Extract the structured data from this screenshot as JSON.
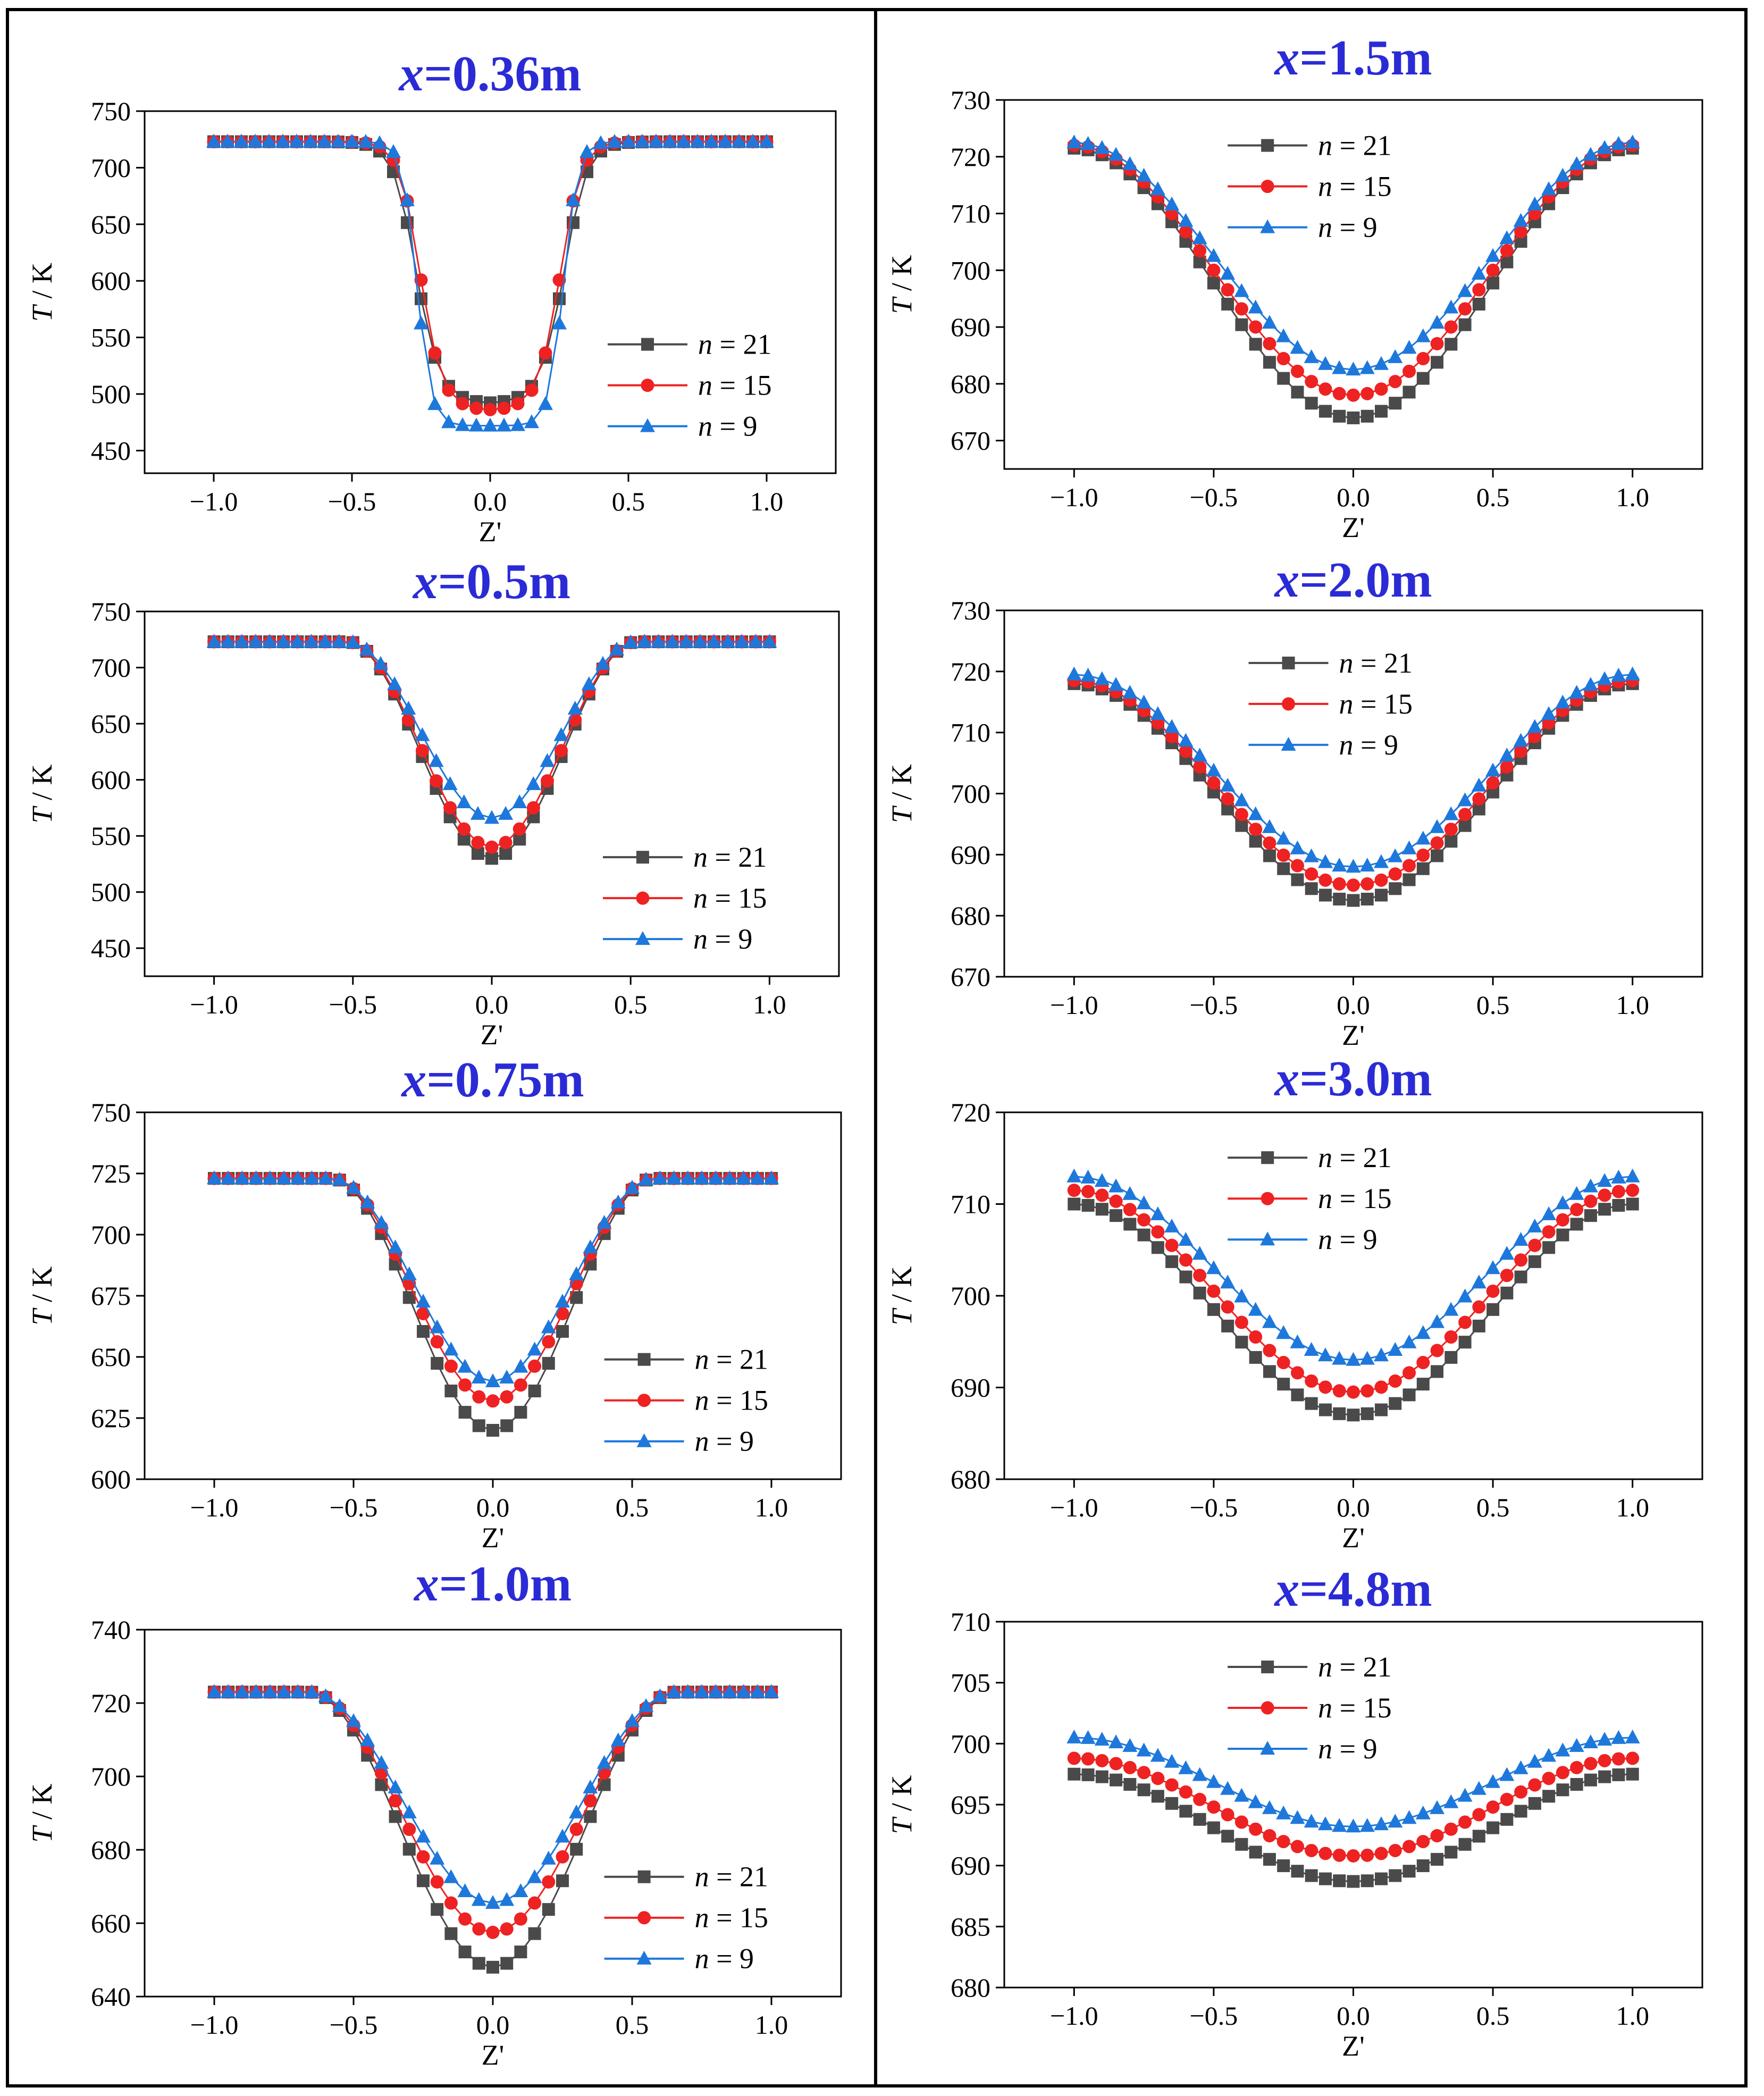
{
  "figure": {
    "xlabel": "Z'",
    "ylabel_italic": "T",
    "ylabel_unit": " / K"
  },
  "chart_data": [
    {
      "type": "line",
      "title_var": "x",
      "title_value": "=0.36m",
      "xlabel": "Z'",
      "ylabel": "T / K",
      "xlim": [
        -1.25,
        1.25
      ],
      "ylim": [
        430,
        750
      ],
      "xticks": [
        "-1.0",
        "-0.5",
        "0.0",
        "0.5",
        "1.0"
      ],
      "yticks": [
        "450",
        "500",
        "550",
        "600",
        "650",
        "700",
        "750"
      ],
      "ytick_values": [
        450,
        500,
        550,
        600,
        650,
        700,
        750
      ],
      "legend_placement": "center-right",
      "profile": {
        "kind": "well",
        "outer": 723
      },
      "series": [
        {
          "name": "n = 21",
          "n_value": "21",
          "marker": "square",
          "color": "#4a4a4a",
          "center": 492,
          "edge": 0.27,
          "edge_width": 0.04,
          "flat": 0.035
        },
        {
          "name": "n = 15",
          "n_value": "15",
          "marker": "circle",
          "color": "#ee2222",
          "center": 486,
          "edge": 0.255,
          "edge_width": 0.037,
          "flat": 0.01
        },
        {
          "name": "n = 9",
          "n_value": "9",
          "marker": "triangle",
          "color": "#1e78dc",
          "center": 472,
          "edge": 0.265,
          "edge_width": 0.026,
          "flat": 0.045
        }
      ]
    },
    {
      "type": "line",
      "title_var": "x",
      "title_value": "=1.5m",
      "xlabel": "Z'",
      "ylabel": "T / K",
      "xlim": [
        -1.25,
        1.25
      ],
      "ylim": [
        665,
        730
      ],
      "xticks": [
        "-1.0",
        "-0.5",
        "0.0",
        "0.5",
        "1.0"
      ],
      "yticks": [
        "670",
        "680",
        "690",
        "700",
        "710",
        "720",
        "730"
      ],
      "ytick_values": [
        670,
        680,
        690,
        700,
        710,
        720,
        730
      ],
      "legend_placement": "top-left",
      "profile": {
        "kind": "cosine"
      },
      "series": [
        {
          "name": "n = 21",
          "n_value": "21",
          "marker": "square",
          "color": "#4a4a4a",
          "center": 674,
          "end": 721.5
        },
        {
          "name": "n = 15",
          "n_value": "15",
          "marker": "circle",
          "color": "#ee2222",
          "center": 678,
          "end": 722
        },
        {
          "name": "n = 9",
          "n_value": "9",
          "marker": "triangle",
          "color": "#1e78dc",
          "center": 682.5,
          "end": 722.5
        }
      ]
    },
    {
      "type": "line",
      "title_var": "x",
      "title_value": "=0.5m",
      "xlabel": "Z'",
      "ylabel": "T / K",
      "xlim": [
        -1.25,
        1.25
      ],
      "ylim": [
        425,
        750
      ],
      "xticks": [
        "-1.0",
        "-0.5",
        "0.0",
        "0.5",
        "1.0"
      ],
      "yticks": [
        "450",
        "500",
        "550",
        "600",
        "650",
        "700",
        "750"
      ],
      "ytick_values": [
        450,
        500,
        550,
        600,
        650,
        700,
        750
      ],
      "legend_placement": "bottom-right",
      "profile": {
        "kind": "bump",
        "outer": 723,
        "width": 0.52
      },
      "series": [
        {
          "name": "n = 21",
          "n_value": "21",
          "marker": "square",
          "color": "#4a4a4a",
          "center": 530
        },
        {
          "name": "n = 15",
          "n_value": "15",
          "marker": "circle",
          "color": "#ee2222",
          "center": 540
        },
        {
          "name": "n = 9",
          "n_value": "9",
          "marker": "triangle",
          "color": "#1e78dc",
          "center": 566
        }
      ]
    },
    {
      "type": "line",
      "title_var": "x",
      "title_value": "=2.0m",
      "xlabel": "Z'",
      "ylabel": "T / K",
      "xlim": [
        -1.25,
        1.25
      ],
      "ylim": [
        670,
        730
      ],
      "xticks": [
        "-1.0",
        "-0.5",
        "0.0",
        "0.5",
        "1.0"
      ],
      "yticks": [
        "670",
        "680",
        "690",
        "700",
        "710",
        "720",
        "730"
      ],
      "ytick_values": [
        670,
        680,
        690,
        700,
        710,
        720,
        730
      ],
      "legend_placement": "top-center",
      "profile": {
        "kind": "cosine"
      },
      "series": [
        {
          "name": "n = 21",
          "n_value": "21",
          "marker": "square",
          "color": "#4a4a4a",
          "center": 682.5,
          "end": 718
        },
        {
          "name": "n = 15",
          "n_value": "15",
          "marker": "circle",
          "color": "#ee2222",
          "center": 685,
          "end": 718.5
        },
        {
          "name": "n = 9",
          "n_value": "9",
          "marker": "triangle",
          "color": "#1e78dc",
          "center": 688,
          "end": 719.5
        }
      ]
    },
    {
      "type": "line",
      "title_var": "x",
      "title_value": "=0.75m",
      "xlabel": "Z'",
      "ylabel": "T / K",
      "xlim": [
        -1.25,
        1.25
      ],
      "ylim": [
        600,
        750
      ],
      "xticks": [
        "-1.0",
        "-0.5",
        "0.0",
        "0.5",
        "1.0"
      ],
      "yticks": [
        "600",
        "625",
        "650",
        "675",
        "700",
        "725",
        "750"
      ],
      "ytick_values": [
        600,
        625,
        650,
        675,
        700,
        725,
        750
      ],
      "legend_placement": "bottom-right",
      "profile": {
        "kind": "bump",
        "outer": 723,
        "width": 0.58
      },
      "series": [
        {
          "name": "n = 21",
          "n_value": "21",
          "marker": "square",
          "color": "#4a4a4a",
          "center": 620
        },
        {
          "name": "n = 15",
          "n_value": "15",
          "marker": "circle",
          "color": "#ee2222",
          "center": 632
        },
        {
          "name": "n = 9",
          "n_value": "9",
          "marker": "triangle",
          "color": "#1e78dc",
          "center": 640
        }
      ]
    },
    {
      "type": "line",
      "title_var": "x",
      "title_value": "=3.0m",
      "xlabel": "Z'",
      "ylabel": "T / K",
      "xlim": [
        -1.25,
        1.25
      ],
      "ylim": [
        680,
        720
      ],
      "xticks": [
        "-1.0",
        "-0.5",
        "0.0",
        "0.5",
        "1.0"
      ],
      "yticks": [
        "680",
        "690",
        "700",
        "710",
        "720"
      ],
      "ytick_values": [
        680,
        690,
        700,
        710,
        720
      ],
      "legend_placement": "top-left",
      "profile": {
        "kind": "cosine"
      },
      "series": [
        {
          "name": "n = 21",
          "n_value": "21",
          "marker": "square",
          "color": "#4a4a4a",
          "center": 687,
          "end": 710
        },
        {
          "name": "n = 15",
          "n_value": "15",
          "marker": "circle",
          "color": "#ee2222",
          "center": 689.5,
          "end": 711.5
        },
        {
          "name": "n = 9",
          "n_value": "9",
          "marker": "triangle",
          "color": "#1e78dc",
          "center": 693,
          "end": 713
        }
      ]
    },
    {
      "type": "line",
      "title_var": "x",
      "title_value": "=1.0m",
      "xlabel": "Z'",
      "ylabel": "T / K",
      "xlim": [
        -1.25,
        1.25
      ],
      "ylim": [
        640,
        740
      ],
      "xticks": [
        "-1.0",
        "-0.5",
        "0.0",
        "0.5",
        "1.0"
      ],
      "yticks": [
        "640",
        "660",
        "680",
        "700",
        "720",
        "740"
      ],
      "ytick_values": [
        640,
        660,
        680,
        700,
        720,
        740
      ],
      "legend_placement": "bottom-right",
      "profile": {
        "kind": "bump",
        "outer": 723,
        "width": 0.66
      },
      "series": [
        {
          "name": "n = 21",
          "n_value": "21",
          "marker": "square",
          "color": "#4a4a4a",
          "center": 648
        },
        {
          "name": "n = 15",
          "n_value": "15",
          "marker": "circle",
          "color": "#ee2222",
          "center": 657.5
        },
        {
          "name": "n = 9",
          "n_value": "9",
          "marker": "triangle",
          "color": "#1e78dc",
          "center": 665.5
        }
      ]
    },
    {
      "type": "line",
      "title_var": "x",
      "title_value": "=4.8m",
      "xlabel": "Z'",
      "ylabel": "T / K",
      "xlim": [
        -1.25,
        1.25
      ],
      "ylim": [
        680,
        710
      ],
      "xticks": [
        "-1.0",
        "-0.5",
        "0.0",
        "0.5",
        "1.0"
      ],
      "yticks": [
        "680",
        "685",
        "690",
        "695",
        "700",
        "705",
        "710"
      ],
      "ytick_values": [
        680,
        685,
        690,
        695,
        700,
        705,
        710
      ],
      "legend_placement": "top-left",
      "profile": {
        "kind": "cosine"
      },
      "series": [
        {
          "name": "n = 21",
          "n_value": "21",
          "marker": "square",
          "color": "#4a4a4a",
          "center": 688.7,
          "end": 697.5
        },
        {
          "name": "n = 15",
          "n_value": "15",
          "marker": "circle",
          "color": "#ee2222",
          "center": 690.8,
          "end": 698.8
        },
        {
          "name": "n = 9",
          "n_value": "9",
          "marker": "triangle",
          "color": "#1e78dc",
          "center": 693.2,
          "end": 700.5
        }
      ]
    }
  ]
}
